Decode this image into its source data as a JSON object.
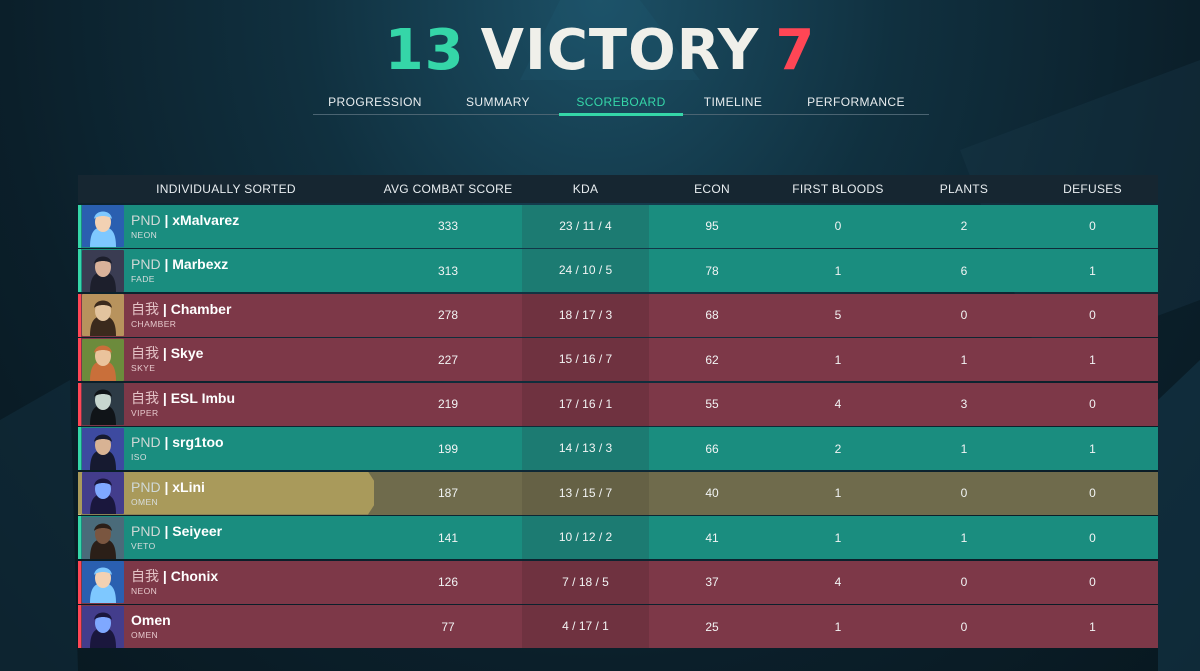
{
  "score": {
    "team": "13",
    "result": "VICTORY",
    "enemy": "7"
  },
  "colors": {
    "ally": "#1a8d7f",
    "enemy": "#7d3848",
    "self": "#a99a5b",
    "accent": "#35d6a8",
    "red": "#ff4655"
  },
  "tabs": [
    {
      "label": "PROGRESSION",
      "active": false
    },
    {
      "label": "SUMMARY",
      "active": false
    },
    {
      "label": "SCOREBOARD",
      "active": true
    },
    {
      "label": "TIMELINE",
      "active": false
    },
    {
      "label": "PERFORMANCE",
      "active": false
    }
  ],
  "columns": [
    "INDIVIDUALLY SORTED",
    "AVG COMBAT SCORE",
    "KDA",
    "ECON",
    "FIRST BLOODS",
    "PLANTS",
    "DEFUSES"
  ],
  "players": [
    {
      "tag": "PND",
      "name": "xMalvarez",
      "agent": "NEON",
      "team": "ally",
      "acs": "333",
      "kda": "23 / 11 / 4",
      "econ": "95",
      "fb": "0",
      "plants": "2",
      "defuses": "0",
      "avatar_icon": "neon-portrait-icon"
    },
    {
      "tag": "PND",
      "name": "Marbexz",
      "agent": "FADE",
      "team": "ally",
      "acs": "313",
      "kda": "24 / 10 / 5",
      "econ": "78",
      "fb": "1",
      "plants": "6",
      "defuses": "1",
      "avatar_icon": "fade-portrait-icon"
    },
    {
      "tag": "自我",
      "name": "Chamber",
      "agent": "CHAMBER",
      "team": "enemy",
      "acs": "278",
      "kda": "18 / 17 / 3",
      "econ": "68",
      "fb": "5",
      "plants": "0",
      "defuses": "0",
      "avatar_icon": "chamber-portrait-icon"
    },
    {
      "tag": "自我",
      "name": "Skye",
      "agent": "SKYE",
      "team": "enemy",
      "acs": "227",
      "kda": "15 / 16 / 7",
      "econ": "62",
      "fb": "1",
      "plants": "1",
      "defuses": "1",
      "avatar_icon": "skye-portrait-icon"
    },
    {
      "tag": "自我",
      "name": "ESL Imbu",
      "agent": "VIPER",
      "team": "enemy",
      "acs": "219",
      "kda": "17 / 16 / 1",
      "econ": "55",
      "fb": "4",
      "plants": "3",
      "defuses": "0",
      "avatar_icon": "viper-portrait-icon"
    },
    {
      "tag": "PND",
      "name": "srg1too",
      "agent": "ISO",
      "team": "ally",
      "acs": "199",
      "kda": "14 / 13 / 3",
      "econ": "66",
      "fb": "2",
      "plants": "1",
      "defuses": "1",
      "avatar_icon": "iso-portrait-icon"
    },
    {
      "tag": "PND",
      "name": "xLini",
      "agent": "OMEN",
      "team": "self",
      "acs": "187",
      "kda": "13 / 15 / 7",
      "econ": "40",
      "fb": "1",
      "plants": "0",
      "defuses": "0",
      "avatar_icon": "omen-portrait-icon"
    },
    {
      "tag": "PND",
      "name": "Seiyeer",
      "agent": "VETO",
      "team": "ally",
      "acs": "141",
      "kda": "10 / 12 / 2",
      "econ": "41",
      "fb": "1",
      "plants": "1",
      "defuses": "0",
      "avatar_icon": "veto-portrait-icon"
    },
    {
      "tag": "自我",
      "name": "Chonix",
      "agent": "NEON",
      "team": "enemy",
      "acs": "126",
      "kda": "7 / 18 / 5",
      "econ": "37",
      "fb": "4",
      "plants": "0",
      "defuses": "0",
      "avatar_icon": "neon-portrait-icon"
    },
    {
      "tag": "",
      "name": "Omen",
      "agent": "OMEN",
      "team": "enemy",
      "acs": "77",
      "kda": "4 / 17 / 1",
      "econ": "25",
      "fb": "1",
      "plants": "0",
      "defuses": "1",
      "avatar_icon": "omen-portrait-icon"
    }
  ]
}
